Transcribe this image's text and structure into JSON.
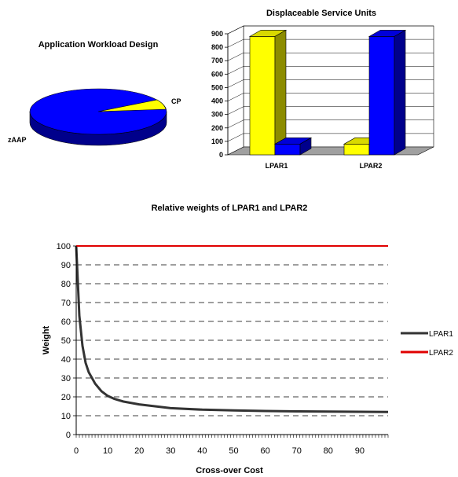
{
  "chart_data": [
    {
      "type": "pie",
      "title": "Application Workload Design",
      "slices": [
        {
          "label": "zAAP",
          "value": 90
        },
        {
          "label": "CP",
          "value": 10
        }
      ],
      "colors": {
        "zAAP": "#0000ff",
        "CP": "#ffff00"
      }
    },
    {
      "type": "bar",
      "title": "Displaceable Service Units",
      "categories": [
        "LPAR1",
        "LPAR2"
      ],
      "series": [
        {
          "values": [
            880,
            80
          ]
        },
        {
          "values": [
            80,
            880
          ]
        }
      ],
      "ylim": [
        0,
        900
      ],
      "yticks": [
        0,
        100,
        200,
        300,
        400,
        500,
        600,
        700,
        800,
        900
      ],
      "colors": [
        "#ffff00",
        "#0000ff"
      ],
      "grid": true
    },
    {
      "type": "line",
      "title": "Relative weights of LPAR1 and LPAR2",
      "xlabel": "Cross-over Cost",
      "ylabel": "Weight",
      "xlim": [
        0,
        99
      ],
      "ylim": [
        0,
        100
      ],
      "xticks": [
        0,
        10,
        20,
        30,
        40,
        50,
        60,
        70,
        80,
        90
      ],
      "yticks": [
        0,
        10,
        20,
        30,
        40,
        50,
        60,
        70,
        80,
        90,
        100
      ],
      "grid": true,
      "legend_position": "right",
      "series": [
        {
          "name": "LPAR1",
          "color": "#333333",
          "x": [
            0,
            1,
            2,
            3,
            4,
            5,
            6,
            8,
            10,
            12,
            15,
            20,
            25,
            30,
            40,
            50,
            60,
            70,
            80,
            90,
            99
          ],
          "y": [
            100,
            63,
            47,
            38,
            33,
            30,
            27,
            23,
            20.5,
            19,
            17.5,
            16,
            15,
            14,
            13.2,
            12.8,
            12.5,
            12.3,
            12.2,
            12.1,
            12
          ]
        },
        {
          "name": "LPAR2",
          "color": "#e00000",
          "x": [
            0,
            99
          ],
          "y": [
            100,
            100
          ]
        }
      ]
    }
  ]
}
